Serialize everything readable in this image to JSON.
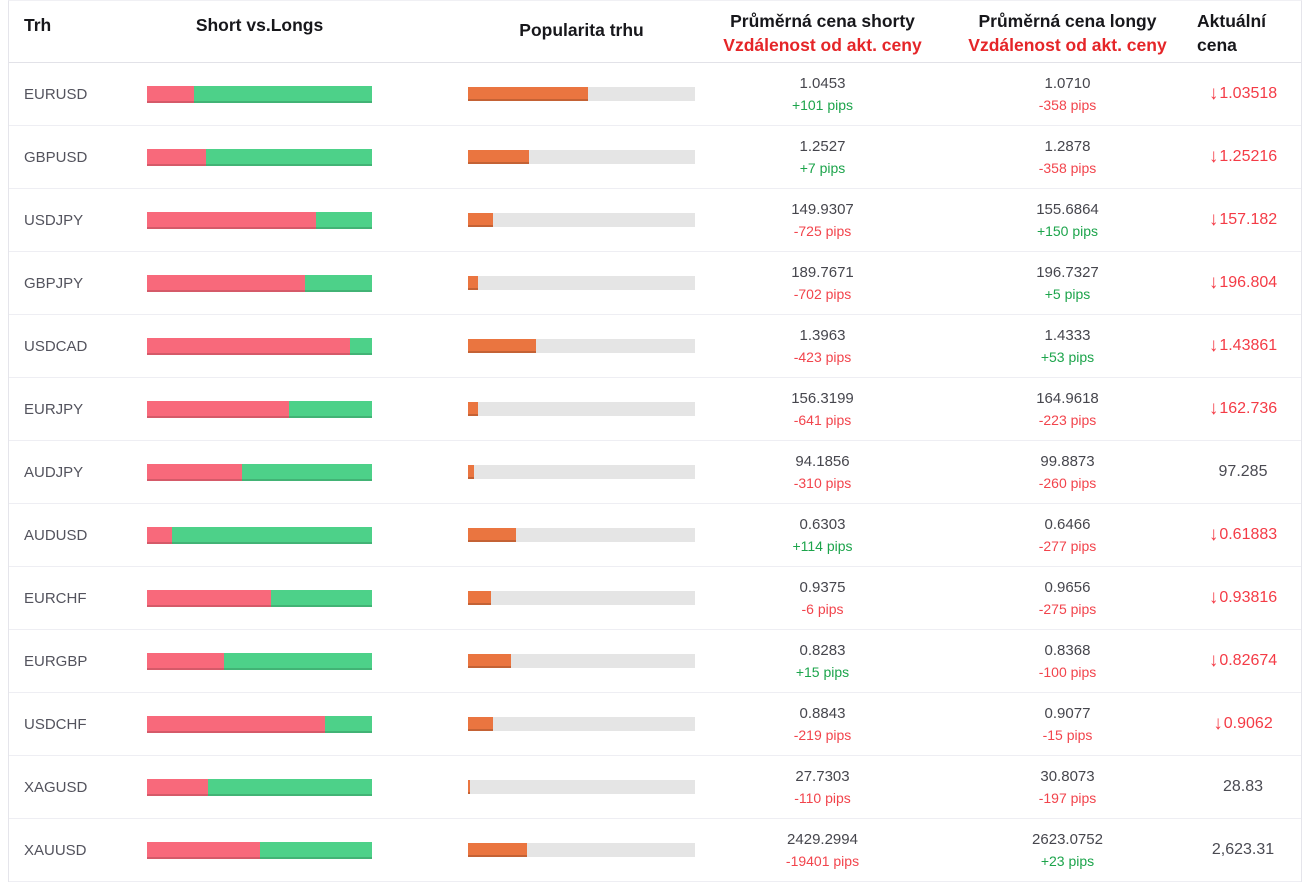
{
  "header": {
    "market": "Trh",
    "short_vs_longs": "Short vs.Longs",
    "popularity": "Popularita trhu",
    "avg_short_line1": "Průměrná cena shorty",
    "avg_short_line2": "Vzdálenost od akt. ceny",
    "avg_long_line1": "Průměrná cena longy",
    "avg_long_line2": "Vzdálenost od akt. ceny",
    "current_line1": "Aktuální",
    "current_line2": "cena"
  },
  "icons": {
    "down_arrow": "↓"
  },
  "colors": {
    "short_bar": "#f8697b",
    "long_bar": "#4dd189",
    "popularity_fill": "#ea7540",
    "popularity_track": "#e5e5e5",
    "pips_positive": "#1ca44b",
    "pips_negative": "#f2444c",
    "current_down": "#f43b46",
    "header_red": "#e52528"
  },
  "rows": [
    {
      "market": "EURUSD",
      "short_pct": 21,
      "popularity_pct": 53,
      "avg_short": "1.0453",
      "short_pips": "+101 pips",
      "avg_long": "1.0710",
      "long_pips": "-358 pips",
      "current": "1.03518",
      "current_down": true
    },
    {
      "market": "GBPUSD",
      "short_pct": 26,
      "popularity_pct": 27,
      "avg_short": "1.2527",
      "short_pips": "+7 pips",
      "avg_long": "1.2878",
      "long_pips": "-358 pips",
      "current": "1.25216",
      "current_down": true
    },
    {
      "market": "USDJPY",
      "short_pct": 75,
      "popularity_pct": 11,
      "avg_short": "149.9307",
      "short_pips": "-725 pips",
      "avg_long": "155.6864",
      "long_pips": "+150 pips",
      "current": "157.182",
      "current_down": true
    },
    {
      "market": "GBPJPY",
      "short_pct": 70,
      "popularity_pct": 4.5,
      "avg_short": "189.7671",
      "short_pips": "-702 pips",
      "avg_long": "196.7327",
      "long_pips": "+5 pips",
      "current": "196.804",
      "current_down": true
    },
    {
      "market": "USDCAD",
      "short_pct": 90,
      "popularity_pct": 30,
      "avg_short": "1.3963",
      "short_pips": "-423 pips",
      "avg_long": "1.4333",
      "long_pips": "+53 pips",
      "current": "1.43861",
      "current_down": true
    },
    {
      "market": "EURJPY",
      "short_pct": 63,
      "popularity_pct": 4.5,
      "avg_short": "156.3199",
      "short_pips": "-641 pips",
      "avg_long": "164.9618",
      "long_pips": "-223 pips",
      "current": "162.736",
      "current_down": true
    },
    {
      "market": "AUDJPY",
      "short_pct": 42,
      "popularity_pct": 2.5,
      "avg_short": "94.1856",
      "short_pips": "-310 pips",
      "avg_long": "99.8873",
      "long_pips": "-260 pips",
      "current": "97.285",
      "current_down": false
    },
    {
      "market": "AUDUSD",
      "short_pct": 11,
      "popularity_pct": 21,
      "avg_short": "0.6303",
      "short_pips": "+114 pips",
      "avg_long": "0.6466",
      "long_pips": "-277 pips",
      "current": "0.61883",
      "current_down": true
    },
    {
      "market": "EURCHF",
      "short_pct": 55,
      "popularity_pct": 10,
      "avg_short": "0.9375",
      "short_pips": "-6 pips",
      "avg_long": "0.9656",
      "long_pips": "-275 pips",
      "current": "0.93816",
      "current_down": true
    },
    {
      "market": "EURGBP",
      "short_pct": 34,
      "popularity_pct": 19,
      "avg_short": "0.8283",
      "short_pips": "+15 pips",
      "avg_long": "0.8368",
      "long_pips": "-100 pips",
      "current": "0.82674",
      "current_down": true
    },
    {
      "market": "USDCHF",
      "short_pct": 79,
      "popularity_pct": 11,
      "avg_short": "0.8843",
      "short_pips": "-219 pips",
      "avg_long": "0.9077",
      "long_pips": "-15 pips",
      "current": "0.9062",
      "current_down": true
    },
    {
      "market": "XAGUSD",
      "short_pct": 27,
      "popularity_pct": 1,
      "avg_short": "27.7303",
      "short_pips": "-110 pips",
      "avg_long": "30.8073",
      "long_pips": "-197 pips",
      "current": "28.83",
      "current_down": false
    },
    {
      "market": "XAUUSD",
      "short_pct": 50,
      "popularity_pct": 26,
      "avg_short": "2429.2994",
      "short_pips": "-19401 pips",
      "avg_long": "2623.0752",
      "long_pips": "+23 pips",
      "current": "2,623.31",
      "current_down": false
    }
  ]
}
